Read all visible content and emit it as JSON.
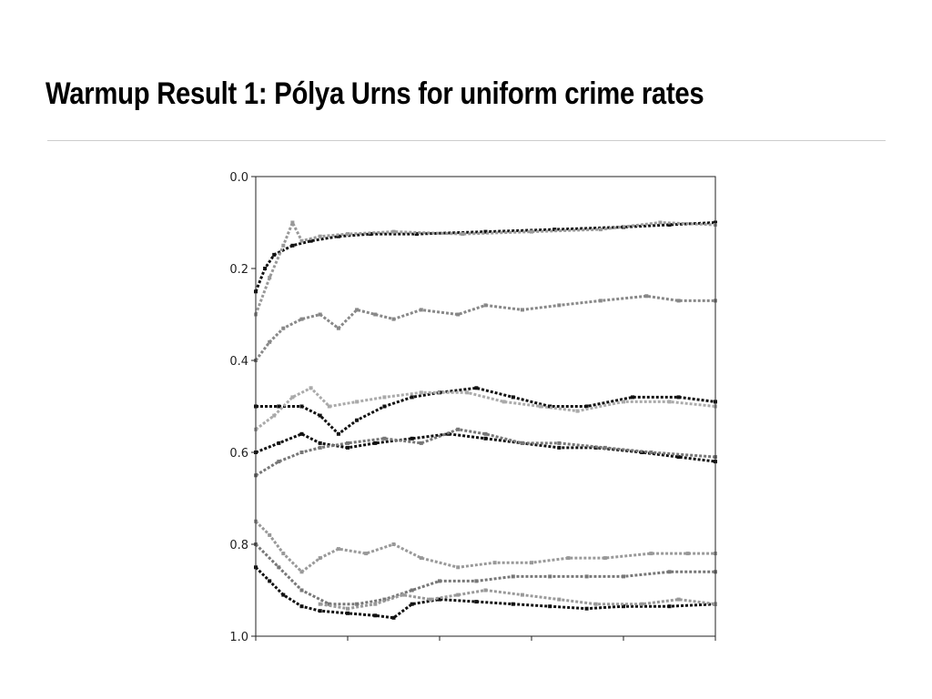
{
  "slide": {
    "title": "Warmup Result 1: Pólya Urns for uniform crime rates"
  },
  "chart_data": {
    "type": "line",
    "title": "",
    "xlabel": "",
    "ylabel": "",
    "x_range": [
      0,
      100
    ],
    "ylim": [
      1.0,
      0.0
    ],
    "y_inverted": true,
    "yticks": [
      0.0,
      0.2,
      0.4,
      0.6,
      0.8,
      1.0
    ],
    "ytick_labels": [
      "0.0",
      "0.2",
      "0.4",
      "0.6",
      "0.8",
      "1.0"
    ],
    "xticks": [
      0,
      20,
      40,
      60,
      80,
      100
    ],
    "xtick_labels": [
      "",
      "",
      "",
      "",
      "",
      ""
    ],
    "grid": false,
    "legend": "none",
    "series": [
      {
        "color": "#111111",
        "values": [
          [
            0,
            0.25
          ],
          [
            2,
            0.2
          ],
          [
            4,
            0.17
          ],
          [
            8,
            0.15
          ],
          [
            12,
            0.14
          ],
          [
            18,
            0.13
          ],
          [
            25,
            0.125
          ],
          [
            35,
            0.125
          ],
          [
            50,
            0.12
          ],
          [
            65,
            0.115
          ],
          [
            80,
            0.11
          ],
          [
            90,
            0.105
          ],
          [
            100,
            0.1
          ]
        ]
      },
      {
        "color": "#999999",
        "values": [
          [
            0,
            0.3
          ],
          [
            3,
            0.22
          ],
          [
            6,
            0.15
          ],
          [
            8,
            0.1
          ],
          [
            10,
            0.14
          ],
          [
            14,
            0.13
          ],
          [
            20,
            0.125
          ],
          [
            30,
            0.12
          ],
          [
            45,
            0.125
          ],
          [
            60,
            0.12
          ],
          [
            75,
            0.115
          ],
          [
            88,
            0.1
          ],
          [
            100,
            0.105
          ]
        ]
      },
      {
        "color": "#888888",
        "values": [
          [
            0,
            0.4
          ],
          [
            3,
            0.36
          ],
          [
            6,
            0.33
          ],
          [
            10,
            0.31
          ],
          [
            14,
            0.3
          ],
          [
            18,
            0.33
          ],
          [
            22,
            0.29
          ],
          [
            26,
            0.3
          ],
          [
            30,
            0.31
          ],
          [
            36,
            0.29
          ],
          [
            44,
            0.3
          ],
          [
            50,
            0.28
          ],
          [
            58,
            0.29
          ],
          [
            66,
            0.28
          ],
          [
            75,
            0.27
          ],
          [
            85,
            0.26
          ],
          [
            92,
            0.27
          ],
          [
            100,
            0.27
          ]
        ]
      },
      {
        "color": "#111111",
        "values": [
          [
            0,
            0.5
          ],
          [
            5,
            0.5
          ],
          [
            10,
            0.5
          ],
          [
            14,
            0.52
          ],
          [
            18,
            0.56
          ],
          [
            22,
            0.53
          ],
          [
            28,
            0.5
          ],
          [
            34,
            0.48
          ],
          [
            40,
            0.47
          ],
          [
            48,
            0.46
          ],
          [
            56,
            0.48
          ],
          [
            64,
            0.5
          ],
          [
            72,
            0.5
          ],
          [
            82,
            0.48
          ],
          [
            92,
            0.48
          ],
          [
            100,
            0.49
          ]
        ]
      },
      {
        "color": "#aaaaaa",
        "values": [
          [
            0,
            0.55
          ],
          [
            4,
            0.52
          ],
          [
            8,
            0.48
          ],
          [
            12,
            0.46
          ],
          [
            16,
            0.5
          ],
          [
            22,
            0.49
          ],
          [
            28,
            0.48
          ],
          [
            36,
            0.47
          ],
          [
            46,
            0.47
          ],
          [
            54,
            0.49
          ],
          [
            62,
            0.5
          ],
          [
            70,
            0.51
          ],
          [
            80,
            0.49
          ],
          [
            90,
            0.49
          ],
          [
            100,
            0.5
          ]
        ]
      },
      {
        "color": "#111111",
        "values": [
          [
            0,
            0.6
          ],
          [
            5,
            0.58
          ],
          [
            10,
            0.56
          ],
          [
            14,
            0.58
          ],
          [
            20,
            0.59
          ],
          [
            26,
            0.58
          ],
          [
            34,
            0.57
          ],
          [
            42,
            0.56
          ],
          [
            50,
            0.57
          ],
          [
            58,
            0.58
          ],
          [
            66,
            0.59
          ],
          [
            74,
            0.59
          ],
          [
            84,
            0.6
          ],
          [
            92,
            0.61
          ],
          [
            100,
            0.62
          ]
        ]
      },
      {
        "color": "#777777",
        "values": [
          [
            0,
            0.65
          ],
          [
            5,
            0.62
          ],
          [
            10,
            0.6
          ],
          [
            14,
            0.59
          ],
          [
            20,
            0.58
          ],
          [
            28,
            0.57
          ],
          [
            36,
            0.58
          ],
          [
            44,
            0.55
          ],
          [
            50,
            0.56
          ],
          [
            58,
            0.58
          ],
          [
            66,
            0.58
          ],
          [
            76,
            0.59
          ],
          [
            86,
            0.6
          ],
          [
            100,
            0.61
          ]
        ]
      },
      {
        "color": "#999999",
        "values": [
          [
            0,
            0.75
          ],
          [
            3,
            0.78
          ],
          [
            6,
            0.82
          ],
          [
            10,
            0.86
          ],
          [
            14,
            0.83
          ],
          [
            18,
            0.81
          ],
          [
            24,
            0.82
          ],
          [
            30,
            0.8
          ],
          [
            36,
            0.83
          ],
          [
            44,
            0.85
          ],
          [
            52,
            0.84
          ],
          [
            60,
            0.84
          ],
          [
            68,
            0.83
          ],
          [
            76,
            0.83
          ],
          [
            86,
            0.82
          ],
          [
            94,
            0.82
          ],
          [
            100,
            0.82
          ]
        ]
      },
      {
        "color": "#777777",
        "values": [
          [
            0,
            0.8
          ],
          [
            5,
            0.85
          ],
          [
            10,
            0.9
          ],
          [
            16,
            0.93
          ],
          [
            22,
            0.93
          ],
          [
            28,
            0.92
          ],
          [
            34,
            0.9
          ],
          [
            40,
            0.88
          ],
          [
            48,
            0.88
          ],
          [
            56,
            0.87
          ],
          [
            64,
            0.87
          ],
          [
            72,
            0.87
          ],
          [
            80,
            0.87
          ],
          [
            90,
            0.86
          ],
          [
            100,
            0.86
          ]
        ]
      },
      {
        "color": "#111111",
        "values": [
          [
            0,
            0.85
          ],
          [
            3,
            0.88
          ],
          [
            6,
            0.91
          ],
          [
            10,
            0.935
          ],
          [
            14,
            0.945
          ],
          [
            20,
            0.95
          ],
          [
            26,
            0.955
          ],
          [
            30,
            0.96
          ],
          [
            34,
            0.93
          ],
          [
            40,
            0.92
          ],
          [
            48,
            0.925
          ],
          [
            56,
            0.93
          ],
          [
            64,
            0.935
          ],
          [
            72,
            0.94
          ],
          [
            80,
            0.935
          ],
          [
            90,
            0.935
          ],
          [
            100,
            0.93
          ]
        ]
      },
      {
        "color": "#999999",
        "values": [
          [
            14,
            0.93
          ],
          [
            20,
            0.94
          ],
          [
            26,
            0.93
          ],
          [
            32,
            0.91
          ],
          [
            38,
            0.92
          ],
          [
            44,
            0.91
          ],
          [
            50,
            0.9
          ],
          [
            58,
            0.91
          ],
          [
            66,
            0.92
          ],
          [
            74,
            0.93
          ],
          [
            84,
            0.93
          ],
          [
            92,
            0.92
          ],
          [
            100,
            0.93
          ]
        ]
      }
    ]
  }
}
